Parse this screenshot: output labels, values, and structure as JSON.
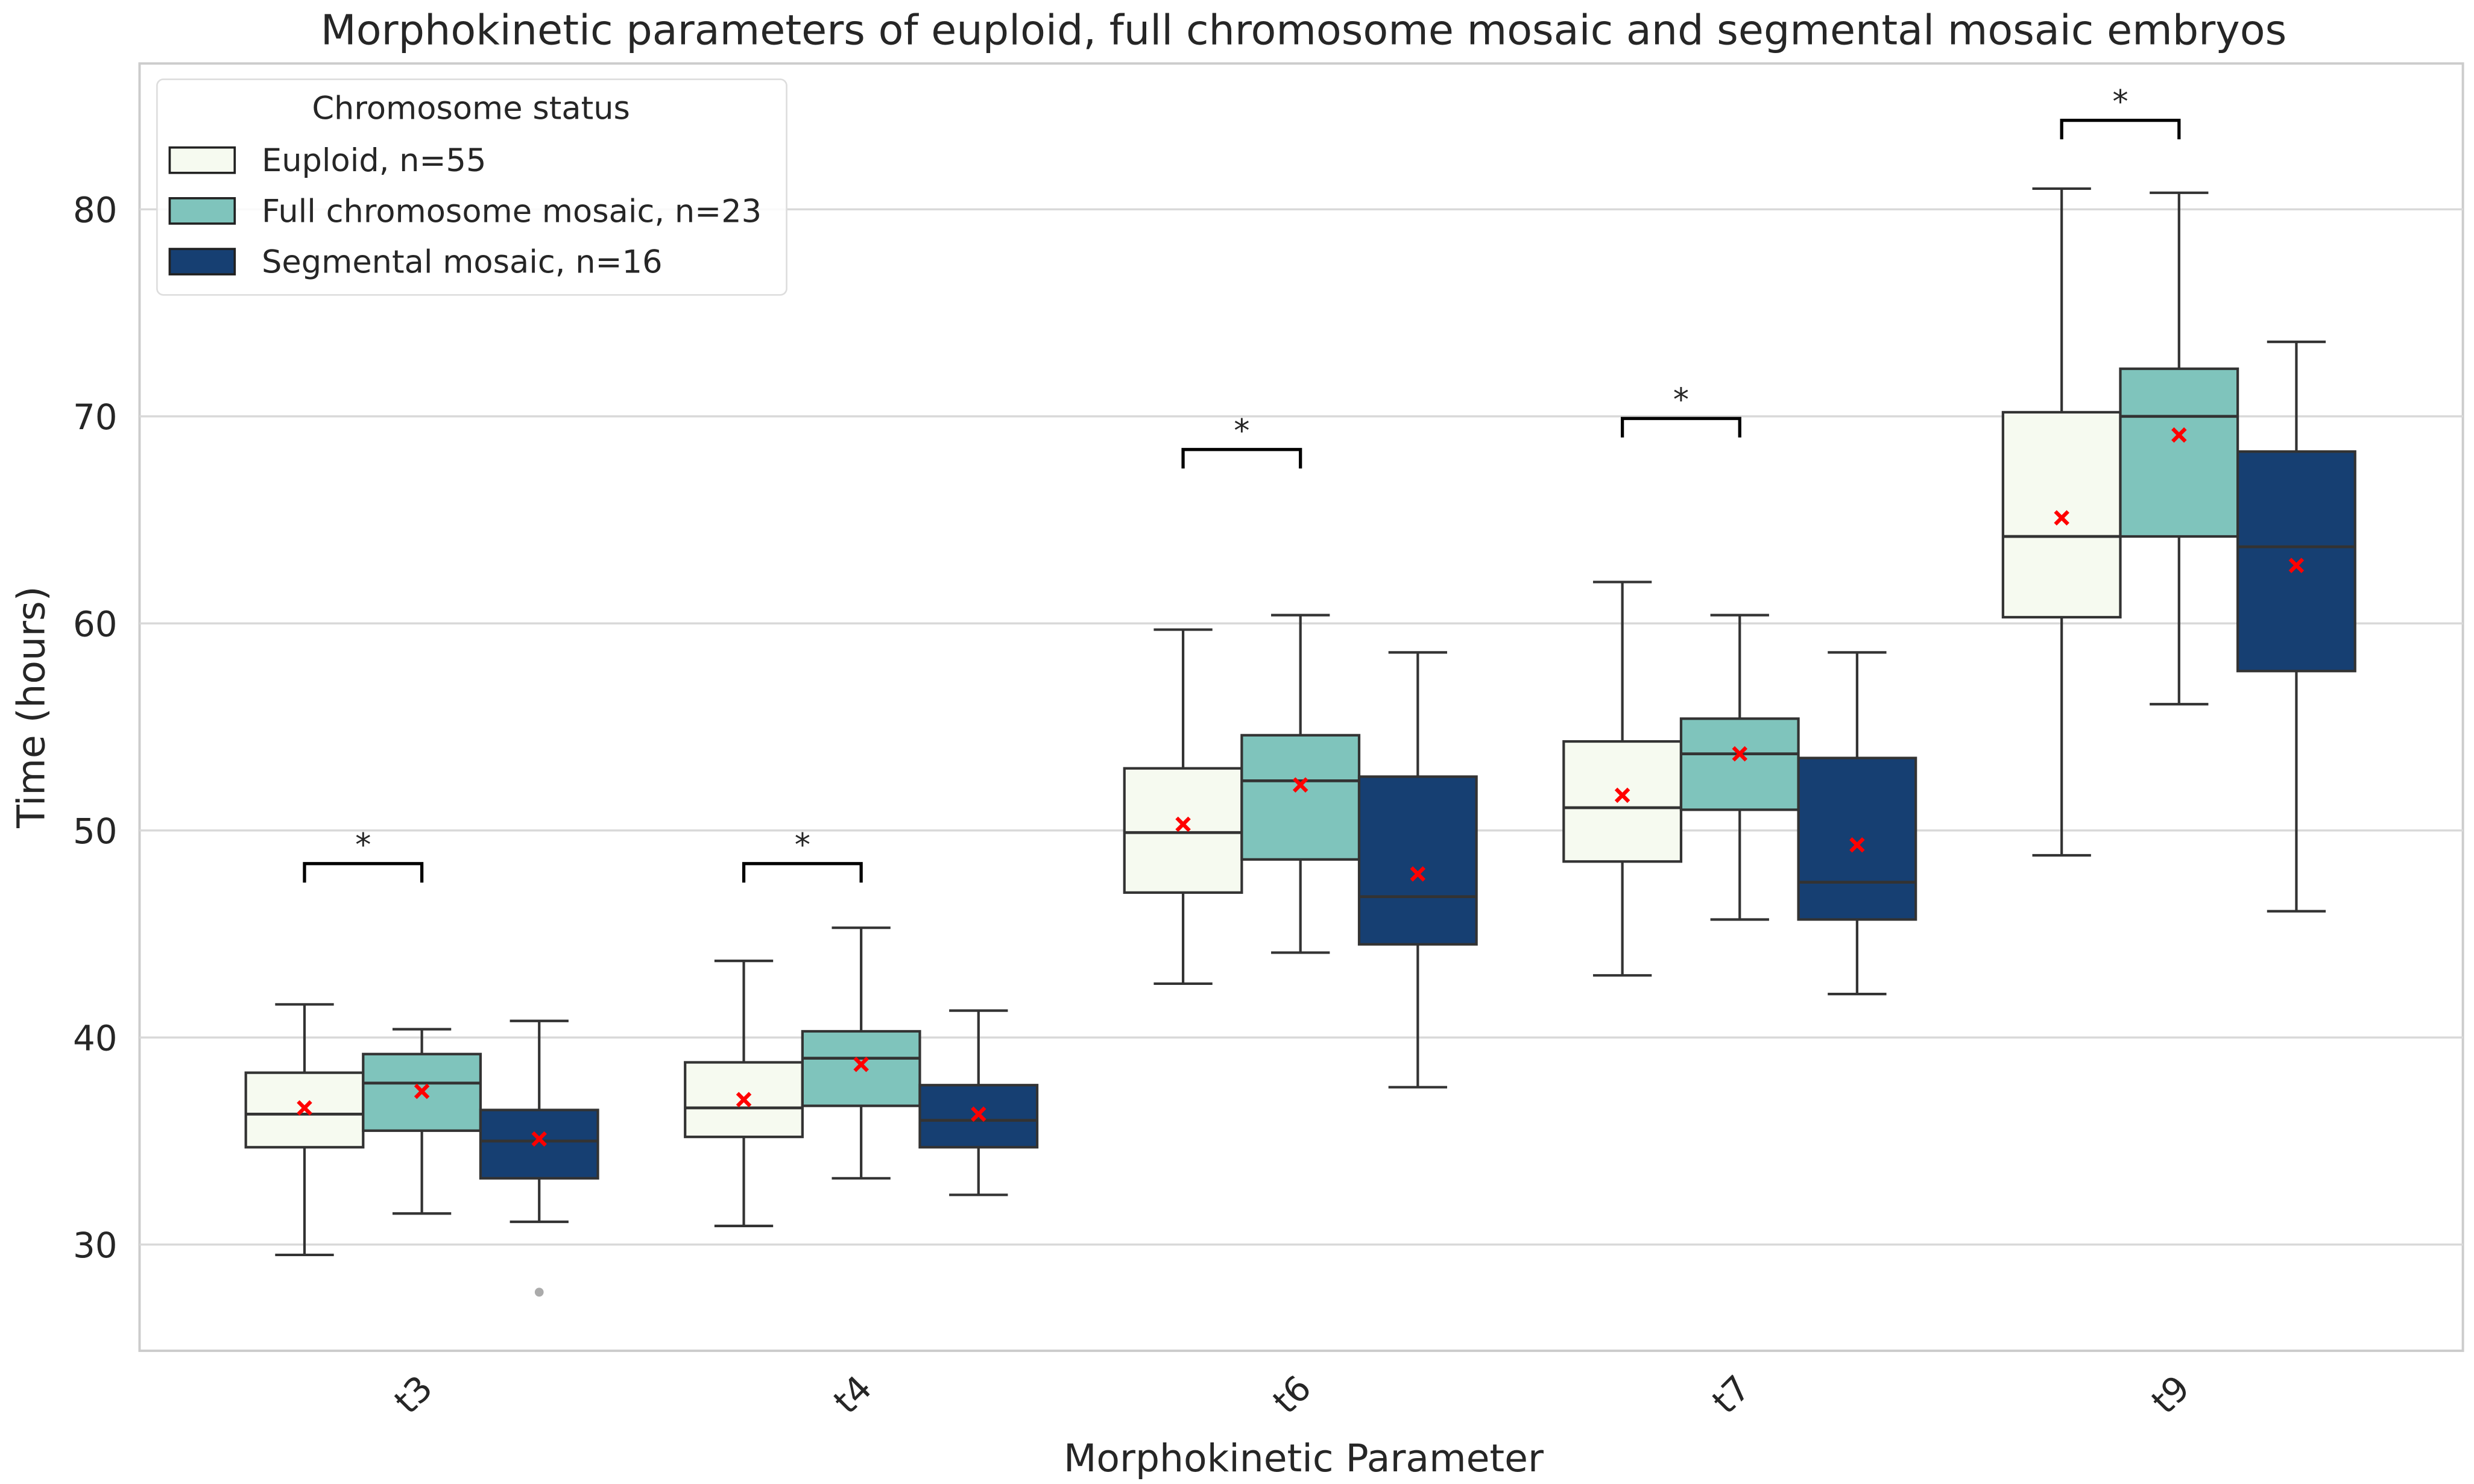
{
  "chart_data": {
    "type": "box",
    "title": "Morphokinetic parameters of euploid, full chromosome mosaic and segmental mosaic embryos",
    "xlabel": "Morphokinetic Parameter",
    "ylabel": "Time (hours)",
    "ylim": [
      25,
      87
    ],
    "yticks": [
      30,
      40,
      50,
      60,
      70,
      80
    ],
    "grid": true,
    "categories": [
      "t3",
      "t4",
      "t6",
      "t7",
      "t9"
    ],
    "legend": {
      "title": "Chromosome status",
      "placement": "top-left"
    },
    "series": [
      {
        "name": "Euploid, n=55",
        "color": "#f6faf0",
        "stats": [
          {
            "whislo": 29.5,
            "q1": 34.7,
            "med": 36.3,
            "q3": 38.3,
            "whishi": 41.6,
            "mean": 36.6
          },
          {
            "whislo": 30.9,
            "q1": 35.2,
            "med": 36.6,
            "q3": 38.8,
            "whishi": 43.7,
            "mean": 37.0
          },
          {
            "whislo": 42.6,
            "q1": 47.0,
            "med": 49.9,
            "q3": 53.0,
            "whishi": 59.7,
            "mean": 50.3
          },
          {
            "whislo": 43.0,
            "q1": 48.5,
            "med": 51.1,
            "q3": 54.3,
            "whishi": 62.0,
            "mean": 51.7
          },
          {
            "whislo": 48.8,
            "q1": 60.3,
            "med": 64.2,
            "q3": 70.2,
            "whishi": 81.0,
            "mean": 65.1
          }
        ]
      },
      {
        "name": "Full chromosome mosaic, n=23",
        "color": "#7fc4bc",
        "stats": [
          {
            "whislo": 31.5,
            "q1": 35.5,
            "med": 37.8,
            "q3": 39.2,
            "whishi": 40.4,
            "mean": 37.4
          },
          {
            "whislo": 33.2,
            "q1": 36.7,
            "med": 39.0,
            "q3": 40.3,
            "whishi": 45.3,
            "mean": 38.7
          },
          {
            "whislo": 44.1,
            "q1": 48.6,
            "med": 52.4,
            "q3": 54.6,
            "whishi": 60.4,
            "mean": 52.2
          },
          {
            "whislo": 45.7,
            "q1": 51.0,
            "med": 53.7,
            "q3": 55.4,
            "whishi": 60.4,
            "mean": 53.7
          },
          {
            "whislo": 56.1,
            "q1": 64.2,
            "med": 70.0,
            "q3": 72.3,
            "whishi": 80.8,
            "mean": 69.1
          }
        ]
      },
      {
        "name": "Segmental mosaic, n=16",
        "color": "#163f72",
        "stats": [
          {
            "whislo": 31.1,
            "q1": 33.2,
            "med": 35.0,
            "q3": 36.5,
            "whishi": 40.8,
            "mean": 35.1
          },
          {
            "whislo": 32.4,
            "q1": 34.7,
            "med": 36.0,
            "q3": 37.7,
            "whishi": 41.3,
            "mean": 36.3
          },
          {
            "whislo": 37.6,
            "q1": 44.5,
            "med": 46.8,
            "q3": 52.6,
            "whishi": 58.6,
            "mean": 47.9
          },
          {
            "whislo": 42.1,
            "q1": 45.7,
            "med": 47.5,
            "q3": 53.5,
            "whishi": 58.6,
            "mean": 49.3
          },
          {
            "whislo": 46.1,
            "q1": 57.7,
            "med": 63.7,
            "q3": 68.3,
            "whishi": 73.6,
            "mean": 62.8
          }
        ]
      }
    ],
    "outliers": [
      {
        "category": "t3",
        "series": 2,
        "value": 27.7
      }
    ],
    "significance": [
      {
        "category": "t3",
        "between": [
          0,
          1
        ],
        "label": "*",
        "y": 48.4
      },
      {
        "category": "t4",
        "between": [
          0,
          1
        ],
        "label": "*",
        "y": 48.4
      },
      {
        "category": "t6",
        "between": [
          0,
          1
        ],
        "label": "*",
        "y": 68.4
      },
      {
        "category": "t7",
        "between": [
          0,
          1
        ],
        "label": "*",
        "y": 69.9
      },
      {
        "category": "t9",
        "between": [
          0,
          1
        ],
        "label": "*",
        "y": 84.3
      }
    ],
    "mean_marker_color": "#ff0000"
  }
}
